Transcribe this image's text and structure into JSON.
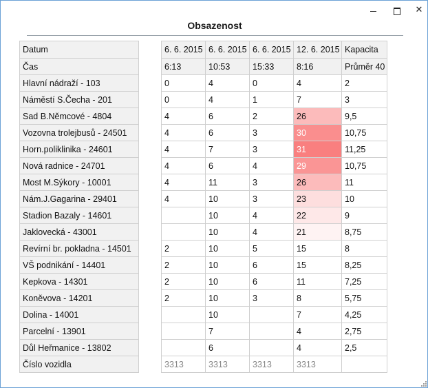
{
  "window": {
    "title": "Obsazenost"
  },
  "controls": {
    "minimize": "minimize",
    "maximize": "maximize",
    "close": "✕"
  },
  "header_rows": [
    {
      "label": "Datum",
      "cells": [
        "6. 6. 2015",
        "6. 6. 2015",
        "6. 6. 2015",
        "12. 6. 2015",
        "Kapacita"
      ]
    },
    {
      "label": "Čas",
      "cells": [
        "6:13",
        "10:53",
        "15:33",
        "8:16",
        "Průměr 40"
      ]
    }
  ],
  "stops": [
    {
      "label": "Hlavní nádraží - 103",
      "cells": [
        "0",
        "4",
        "0",
        "4",
        "2"
      ],
      "heat": 0
    },
    {
      "label": "Náměstí S.Čecha - 201",
      "cells": [
        "0",
        "4",
        "1",
        "7",
        "3"
      ],
      "heat": 0
    },
    {
      "label": "Sad B.Němcové - 4804",
      "cells": [
        "4",
        "6",
        "2",
        "26",
        "9,5"
      ],
      "heat": 0.45
    },
    {
      "label": "Vozovna trolejbusů - 24501",
      "cells": [
        "4",
        "6",
        "3",
        "30",
        "10,75"
      ],
      "heat": 0.75
    },
    {
      "label": "Horn.poliklinika - 24601",
      "cells": [
        "4",
        "7",
        "3",
        "31",
        "11,25"
      ],
      "heat": 0.85
    },
    {
      "label": "Nová radnice - 24701",
      "cells": [
        "4",
        "6",
        "4",
        "29",
        "10,75"
      ],
      "heat": 0.7
    },
    {
      "label": "Most M.Sýkory - 10001",
      "cells": [
        "4",
        "11",
        "3",
        "26",
        "11"
      ],
      "heat": 0.45
    },
    {
      "label": "Nám.J.Gagarina - 29401",
      "cells": [
        "4",
        "10",
        "3",
        "23",
        "10"
      ],
      "heat": 0.22
    },
    {
      "label": "Stadion Bazaly - 14601",
      "cells": [
        "",
        "10",
        "4",
        "22",
        "9"
      ],
      "heat": 0.15
    },
    {
      "label": "Jaklovecká - 43001",
      "cells": [
        "",
        "10",
        "4",
        "21",
        "8,75"
      ],
      "heat": 0.08
    },
    {
      "label": "Revírní br. pokladna - 14501",
      "cells": [
        "2",
        "10",
        "5",
        "15",
        "8"
      ],
      "heat": 0
    },
    {
      "label": "VŠ podnikání - 14401",
      "cells": [
        "2",
        "10",
        "6",
        "15",
        "8,25"
      ],
      "heat": 0
    },
    {
      "label": "Kepkova - 14301",
      "cells": [
        "2",
        "10",
        "6",
        "11",
        "7,25"
      ],
      "heat": 0
    },
    {
      "label": "Koněvova - 14201",
      "cells": [
        "2",
        "10",
        "3",
        "8",
        "5,75"
      ],
      "heat": 0
    },
    {
      "label": "Dolina - 14001",
      "cells": [
        "",
        "10",
        "",
        "7",
        "4,25"
      ],
      "heat": 0
    },
    {
      "label": "Parcelní - 13901",
      "cells": [
        "",
        "7",
        "",
        "4",
        "2,75"
      ],
      "heat": 0
    },
    {
      "label": "Důl Heřmanice - 13802",
      "cells": [
        "",
        "6",
        "",
        "4",
        "2,5"
      ],
      "heat": 0
    }
  ],
  "vehicle_row": {
    "label": "Číslo vozidla",
    "cells": [
      "3313",
      "3313",
      "3313",
      "3313"
    ]
  },
  "colors": {
    "heat_base": "#ffffff",
    "heat_max": "#f86868",
    "header_bg": "#f1f1f1",
    "border": "#cfcfcf"
  }
}
